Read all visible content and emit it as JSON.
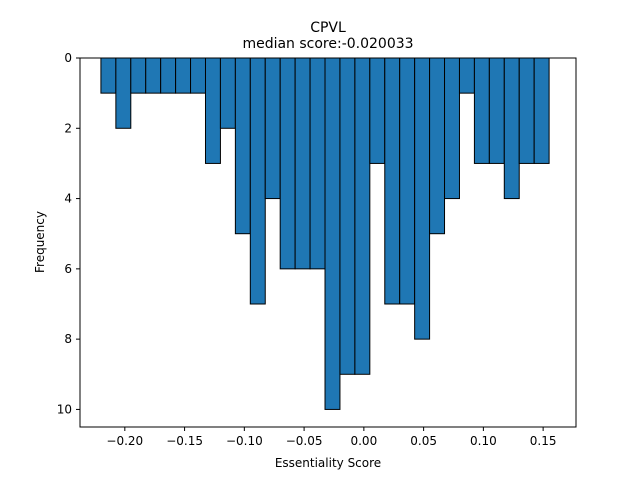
{
  "chart_data": {
    "type": "bar",
    "title": "CPVL",
    "subtitle": "median score:-0.020033",
    "xlabel": "Essentiality Score",
    "ylabel": "Frequency",
    "xlim": [
      -0.2375,
      0.1775
    ],
    "ylim": [
      10.5,
      0
    ],
    "y_inverted": true,
    "bin_start": -0.22,
    "bin_width": 0.0125,
    "values": [
      1,
      2,
      1,
      1,
      1,
      1,
      1,
      3,
      2,
      5,
      7,
      4,
      6,
      6,
      6,
      10,
      9,
      9,
      3,
      7,
      7,
      8,
      5,
      4,
      1,
      3,
      3,
      4,
      3,
      3
    ],
    "xticks": [
      -0.2,
      -0.15,
      -0.1,
      -0.05,
      0.0,
      0.05,
      0.1,
      0.15
    ],
    "xtick_labels": [
      "−0.20",
      "−0.15",
      "−0.10",
      "−0.05",
      "0.00",
      "0.05",
      "0.10",
      "0.15"
    ],
    "yticks": [
      0,
      2,
      4,
      6,
      8,
      10
    ],
    "ytick_labels": [
      "0",
      "2",
      "4",
      "6",
      "8",
      "10"
    ],
    "bar_color": "#1f77b4",
    "edge_color": "#000000",
    "grid": false,
    "legend": "none"
  }
}
